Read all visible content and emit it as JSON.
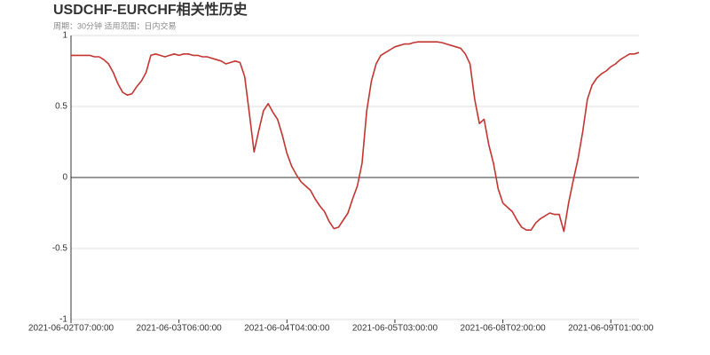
{
  "chart_data": {
    "type": "line",
    "title": "USDCHF-EURCHF相关性历史",
    "subtitle": "周期：30分钟 适用范围：日内交易",
    "color": "#c23531",
    "categories": [
      "2021-06-02T07:00:00",
      null,
      null,
      null,
      null,
      null,
      null,
      null,
      null,
      null,
      null,
      null,
      null,
      null,
      null,
      null,
      null,
      null,
      null,
      null,
      null,
      null,
      null,
      "2021-06-03T06:00:00",
      null,
      null,
      null,
      null,
      null,
      null,
      null,
      null,
      null,
      null,
      null,
      null,
      null,
      null,
      null,
      null,
      null,
      null,
      null,
      null,
      null,
      null,
      "2021-06-04T04:00:00",
      null,
      null,
      null,
      null,
      null,
      null,
      null,
      null,
      null,
      null,
      null,
      null,
      null,
      null,
      null,
      null,
      null,
      null,
      null,
      null,
      null,
      null,
      "2021-06-05T03:00:00",
      null,
      null,
      null,
      null,
      null,
      null,
      null,
      null,
      null,
      null,
      null,
      null,
      null,
      null,
      null,
      null,
      null,
      null,
      null,
      null,
      null,
      null,
      "2021-06-08T02:00:00",
      null,
      null,
      null,
      null,
      null,
      null,
      null,
      null,
      null,
      null,
      null,
      null,
      null,
      null,
      null,
      null,
      null,
      null,
      null,
      null,
      null,
      null,
      "2021-06-09T01:00:00",
      null,
      null,
      null,
      null,
      null,
      null
    ],
    "values": [
      0.86,
      0.86,
      0.86,
      0.86,
      0.86,
      0.85,
      0.85,
      0.83,
      0.8,
      0.74,
      0.66,
      0.6,
      0.58,
      0.59,
      0.64,
      0.68,
      0.74,
      0.86,
      0.87,
      0.86,
      0.85,
      0.86,
      0.87,
      0.86,
      0.87,
      0.87,
      0.86,
      0.86,
      0.85,
      0.85,
      0.84,
      0.83,
      0.82,
      0.8,
      0.81,
      0.82,
      0.81,
      0.71,
      0.45,
      0.18,
      0.33,
      0.47,
      0.52,
      0.46,
      0.41,
      0.3,
      0.17,
      0.08,
      0.02,
      -0.03,
      -0.06,
      -0.09,
      -0.15,
      -0.2,
      -0.24,
      -0.31,
      -0.36,
      -0.35,
      -0.3,
      -0.25,
      -0.15,
      -0.06,
      0.1,
      0.47,
      0.68,
      0.8,
      0.86,
      0.88,
      0.9,
      0.92,
      0.93,
      0.94,
      0.94,
      0.95,
      0.955,
      0.955,
      0.955,
      0.955,
      0.955,
      0.95,
      0.94,
      0.93,
      0.92,
      0.91,
      0.87,
      0.8,
      0.55,
      0.38,
      0.41,
      0.23,
      0.1,
      -0.08,
      -0.18,
      -0.21,
      -0.24,
      -0.3,
      -0.35,
      -0.37,
      -0.37,
      -0.32,
      -0.29,
      -0.27,
      -0.25,
      -0.26,
      -0.26,
      -0.38,
      -0.18,
      -0.02,
      0.13,
      0.32,
      0.55,
      0.65,
      0.7,
      0.73,
      0.75,
      0.78,
      0.8,
      0.83,
      0.85,
      0.87,
      0.87,
      0.88
    ],
    "ylim": [
      -1,
      1
    ],
    "yticks": [
      1,
      0.5,
      0,
      -0.5,
      -1
    ],
    "grid": true
  }
}
